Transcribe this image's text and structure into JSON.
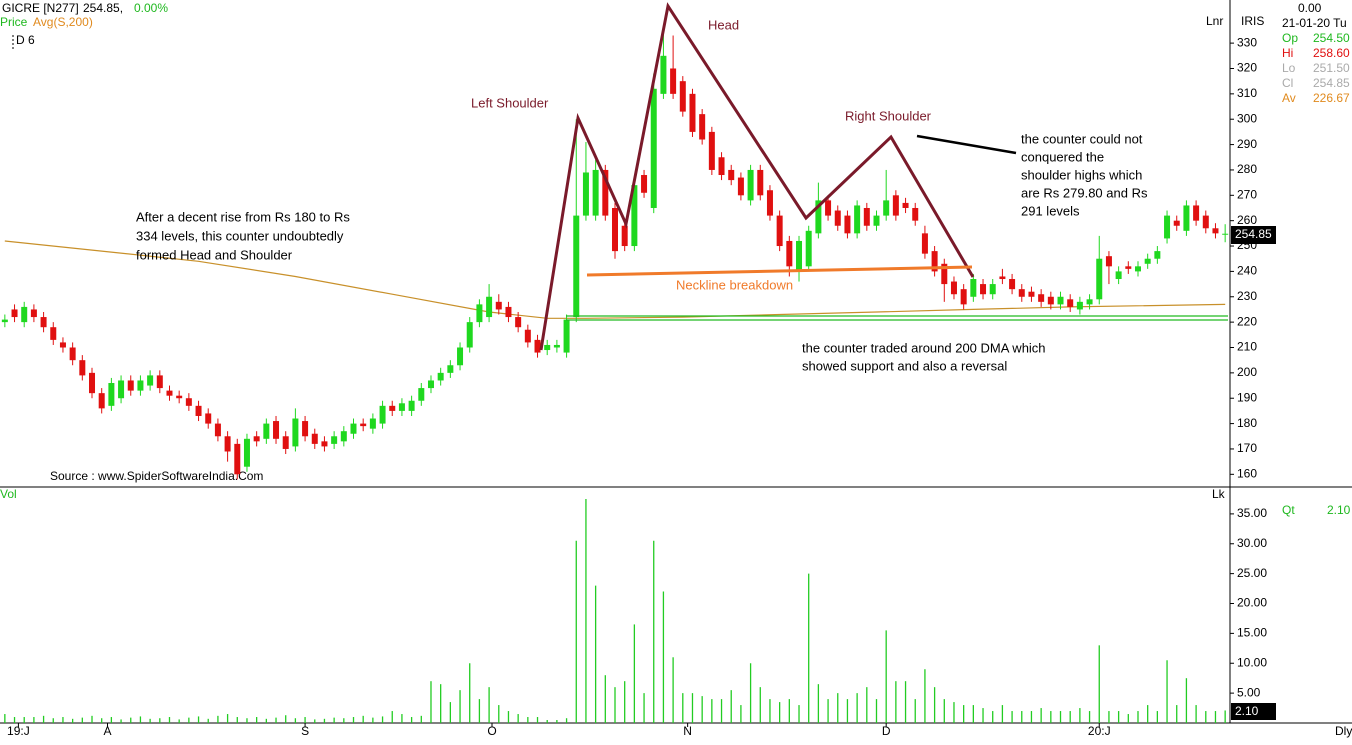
{
  "header": {
    "symbol": "GICRE [N277]",
    "price": "254.85,",
    "change": "0.00%",
    "price_label": "Price",
    "avg_label": "Avg(S,200)",
    "period": "D 6",
    "scale": "Lnr",
    "source": "Source : www.SpiderSoftwareIndia.Com",
    "vol_label": "Vol",
    "vol_scale": "Lk",
    "interval": "Dly",
    "last_price": "254.85",
    "last_vol": "2.10"
  },
  "info": {
    "name": "IRIS",
    "value": "0.00",
    "date": "21-01-20 Tu",
    "rows": [
      [
        "Op",
        "254.50"
      ],
      [
        "Hi",
        "258.60"
      ],
      [
        "Lo",
        "251.50"
      ],
      [
        "Cl",
        "254.85"
      ],
      [
        "Av",
        "226.67"
      ]
    ],
    "qt": [
      "Qt",
      "2.10"
    ]
  },
  "annotations": {
    "head": "Head",
    "left_shoulder": "Left Shoulder",
    "right_shoulder": "Right Shoulder",
    "neckline": "Neckline breakdown",
    "rise": [
      "After a decent rise from Rs 180 to Rs",
      "334 levels, this counter undoubtedly",
      "formed Head and Shoulder"
    ],
    "shoulder_note": [
      "the counter could not",
      "conquered the",
      "shoulder highs which",
      "are Rs 279.80 and Rs",
      "291 levels"
    ],
    "dma_note": [
      "the counter  traded around 200 DMA which",
      "showed support and also a reversal"
    ]
  },
  "chart_data": [
    {
      "type": "candlestick",
      "up_color": "#1fd81f",
      "down_color": "#e01010",
      "open": [
        220,
        225,
        220,
        225,
        222,
        218,
        212,
        210,
        205,
        200,
        192,
        187,
        190,
        197,
        193,
        195,
        199,
        193,
        191,
        190,
        187,
        184,
        180,
        175,
        172,
        163,
        175,
        174,
        181,
        175,
        171,
        181,
        176,
        173,
        172,
        173,
        176,
        180,
        178,
        180,
        187,
        185,
        185,
        189,
        194,
        197,
        200,
        203,
        210,
        220,
        222,
        228,
        226,
        222,
        217,
        213,
        209,
        210,
        208,
        222,
        262,
        262,
        280,
        265,
        258,
        250,
        278,
        265,
        310,
        320,
        315,
        310,
        302,
        295,
        285,
        280,
        277,
        268,
        280,
        272,
        262,
        252,
        240,
        242,
        255,
        268,
        264,
        262,
        255,
        265,
        258,
        262,
        270,
        267,
        265,
        255,
        248,
        243,
        236,
        233,
        230,
        235,
        231,
        238,
        237,
        233,
        232,
        231,
        230,
        227,
        229,
        225,
        227,
        229,
        246,
        237,
        242,
        240,
        243,
        245,
        253,
        260,
        256,
        266,
        262,
        257,
        254.5
      ],
      "high": [
        223,
        227,
        228,
        227,
        224,
        220,
        214,
        212,
        207,
        202,
        194,
        198,
        199,
        199,
        199,
        201,
        201,
        195,
        193,
        192,
        189,
        186,
        182,
        177,
        174,
        176,
        177,
        182,
        183,
        177,
        186,
        183,
        178,
        175,
        177,
        179,
        182,
        182,
        184,
        189,
        189,
        190,
        191,
        196,
        199,
        202,
        205,
        212,
        222,
        229,
        235,
        231,
        228,
        224,
        219,
        215,
        213,
        213,
        223,
        300,
        291,
        284,
        282,
        267,
        260,
        276,
        280,
        318,
        334,
        333,
        317,
        312,
        304,
        297,
        287,
        282,
        279,
        282,
        282,
        274,
        264,
        254,
        254,
        258,
        275,
        270,
        266,
        264,
        268,
        267,
        264,
        280,
        272,
        269,
        267,
        258,
        250,
        245,
        238,
        235,
        239,
        237,
        237,
        241,
        239,
        235,
        234,
        233,
        232,
        232,
        231,
        230,
        231,
        254,
        248,
        242,
        244,
        244,
        247,
        250,
        264,
        262,
        268,
        268,
        264,
        259,
        258.6
      ],
      "low": [
        218,
        220,
        218,
        220,
        216,
        211,
        208,
        203,
        197,
        190,
        184,
        185,
        188,
        191,
        191,
        193,
        192,
        189,
        188,
        185,
        181,
        178,
        173,
        165,
        158,
        161,
        171,
        172,
        172,
        168,
        169,
        173,
        170,
        169,
        170,
        171,
        174,
        177,
        176,
        178,
        183,
        183,
        183,
        187,
        192,
        195,
        198,
        201,
        208,
        218,
        220,
        223,
        220,
        216,
        210,
        206,
        207,
        208,
        206,
        220,
        260,
        260,
        260,
        245,
        248,
        248,
        269,
        263,
        308,
        308,
        301,
        293,
        290,
        278,
        276,
        274,
        268,
        266,
        268,
        260,
        248,
        238,
        236,
        240,
        253,
        260,
        256,
        253,
        253,
        256,
        256,
        260,
        260,
        263,
        258,
        245,
        238,
        228,
        229,
        225,
        228,
        229,
        229,
        235,
        231,
        228,
        228,
        226,
        225,
        225,
        224,
        223,
        225,
        227,
        235,
        235,
        239,
        238,
        241,
        243,
        251,
        256,
        254,
        258,
        255,
        253,
        251.5
      ],
      "close": [
        221,
        222,
        226,
        222,
        218,
        213,
        210,
        205,
        199,
        192,
        186,
        196,
        197,
        193,
        197,
        199,
        194,
        191,
        190,
        187,
        183,
        180,
        175,
        169,
        160,
        174,
        173,
        180,
        174,
        170,
        182,
        175,
        172,
        171,
        175,
        177,
        180,
        179,
        182,
        187,
        185,
        188,
        189,
        194,
        197,
        200,
        203,
        210,
        220,
        227,
        230,
        225,
        222,
        218,
        212,
        208,
        211,
        211,
        221,
        262,
        279,
        280,
        262,
        248,
        250,
        274,
        271,
        312,
        325,
        310,
        303,
        295,
        292,
        280,
        278,
        276,
        270,
        280,
        270,
        262,
        250,
        242,
        252,
        256,
        268,
        262,
        258,
        255,
        266,
        258,
        262,
        268,
        262,
        265,
        260,
        247,
        240,
        235,
        231,
        227,
        237,
        231,
        235,
        237,
        233,
        230,
        230,
        228,
        227,
        230,
        226,
        228,
        229,
        245,
        242,
        240,
        241,
        242,
        245,
        248,
        262,
        258,
        266,
        260,
        257,
        255,
        254.85
      ],
      "ma_color": "#c8902a",
      "ma_x": [
        0,
        10,
        20,
        30,
        40,
        50,
        56,
        60,
        70,
        80,
        90,
        100,
        110,
        126
      ],
      "ma_values": [
        252,
        248,
        244,
        238,
        231,
        224,
        221.5,
        221.5,
        222,
        223,
        224,
        225,
        226,
        227
      ],
      "xlim": [
        -0.5,
        126.5
      ],
      "ylim": [
        155,
        347
      ],
      "yticks": [
        160,
        170,
        180,
        190,
        200,
        210,
        220,
        230,
        240,
        250,
        260,
        270,
        280,
        290,
        300,
        310,
        320,
        330
      ],
      "xticks": [
        {
          "value": 1.4,
          "label": "19:J"
        },
        {
          "value": 10.6,
          "label": "A"
        },
        {
          "value": 31,
          "label": "S"
        },
        {
          "value": 50.3,
          "label": "O"
        },
        {
          "value": 70.5,
          "label": "N"
        },
        {
          "value": 91,
          "label": "D"
        },
        {
          "value": 113,
          "label": "20:J"
        }
      ]
    },
    {
      "type": "volume",
      "color": "#22cc22",
      "values": [
        1.5,
        1,
        1,
        1,
        1.2,
        0.8,
        1,
        0.7,
        0.9,
        1.2,
        0.8,
        1,
        0.6,
        0.9,
        1.1,
        0.7,
        0.8,
        1,
        0.6,
        0.9,
        1.1,
        0.7,
        1.2,
        1.5,
        1,
        0.8,
        1,
        0.7,
        0.9,
        1.3,
        0.8,
        1,
        0.6,
        0.7,
        0.9,
        0.8,
        1,
        1.2,
        0.9,
        1.1,
        2,
        1.5,
        1,
        1.2,
        7,
        6.5,
        3.5,
        5.5,
        10,
        4,
        6,
        3,
        2,
        1.5,
        1,
        1,
        0.5,
        0.5,
        0.8,
        30.5,
        37.5,
        23,
        8,
        6,
        7,
        16.5,
        5,
        30.5,
        22,
        11,
        5,
        5,
        4.5,
        4,
        4,
        5.5,
        3,
        10,
        6,
        4,
        3.5,
        4,
        3,
        25,
        6.5,
        4,
        5,
        4,
        5,
        6,
        4,
        15.5,
        7,
        7,
        4,
        9,
        6,
        4,
        3.5,
        3,
        3,
        2.5,
        2,
        3,
        2,
        2,
        2,
        2.5,
        2,
        2,
        2,
        2.5,
        2,
        13,
        2,
        2,
        1.5,
        2,
        3,
        2,
        10.5,
        3,
        7.5,
        3,
        2,
        2,
        2.1
      ],
      "ylim": [
        0,
        39.5
      ],
      "yticks": [
        {
          "value": 5,
          "label": "5.00"
        },
        {
          "value": 10,
          "label": "10.00"
        },
        {
          "value": 15,
          "label": "15.00"
        },
        {
          "value": 20,
          "label": "20.00"
        },
        {
          "value": 25,
          "label": "25.00"
        },
        {
          "value": 30,
          "label": "30.00"
        },
        {
          "value": 35,
          "label": "35.00"
        }
      ]
    }
  ]
}
